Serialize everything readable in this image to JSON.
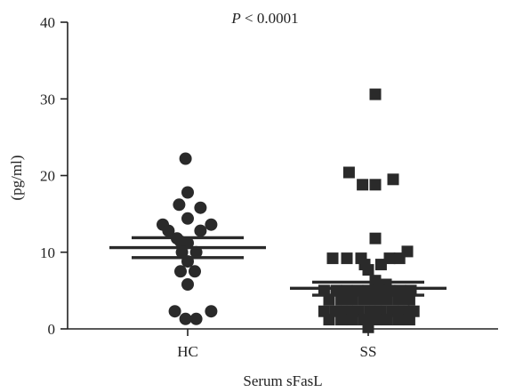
{
  "chart_data": {
    "type": "scatter",
    "xlabel": "Serum sFasL",
    "ylabel": "(pg/ml)",
    "ylim": [
      0,
      40
    ],
    "yticks": [
      0,
      10,
      20,
      30,
      40
    ],
    "annotation_prefix": "P",
    "annotation_text": " < 0.0001",
    "categories": [
      "HC",
      "SS"
    ],
    "grid": false,
    "series": [
      {
        "name": "HC",
        "marker": "circle",
        "points": [
          {
            "x": -0.35,
            "y": 13.6
          },
          {
            "x": -0.27,
            "y": 12.8
          },
          {
            "x": -0.12,
            "y": 16.2
          },
          {
            "x": -0.15,
            "y": 11.8
          },
          {
            "x": -0.03,
            "y": 22.2
          },
          {
            "x": 0.0,
            "y": 17.8
          },
          {
            "x": 0.0,
            "y": 14.4
          },
          {
            "x": 0.0,
            "y": 11.2
          },
          {
            "x": 0.18,
            "y": 15.8
          },
          {
            "x": 0.18,
            "y": 12.8
          },
          {
            "x": 0.33,
            "y": 13.6
          },
          {
            "x": -0.1,
            "y": 11.4
          },
          {
            "x": -0.08,
            "y": 10.0
          },
          {
            "x": 0.12,
            "y": 10.0
          },
          {
            "x": 0.0,
            "y": 8.8
          },
          {
            "x": -0.1,
            "y": 7.5
          },
          {
            "x": 0.1,
            "y": 7.5
          },
          {
            "x": 0.0,
            "y": 5.8
          },
          {
            "x": -0.18,
            "y": 2.3
          },
          {
            "x": 0.33,
            "y": 2.3
          },
          {
            "x": -0.03,
            "y": 1.3
          },
          {
            "x": 0.12,
            "y": 1.3
          }
        ],
        "mean": 10.6,
        "sem": [
          9.3,
          11.9
        ]
      },
      {
        "name": "SS",
        "marker": "square",
        "points": [
          {
            "x": 0.1,
            "y": 30.6
          },
          {
            "x": -0.27,
            "y": 20.4
          },
          {
            "x": 0.35,
            "y": 19.5
          },
          {
            "x": -0.08,
            "y": 18.8
          },
          {
            "x": 0.1,
            "y": 18.8
          },
          {
            "x": 0.1,
            "y": 11.8
          },
          {
            "x": 0.55,
            "y": 10.1
          },
          {
            "x": -0.5,
            "y": 9.2
          },
          {
            "x": -0.3,
            "y": 9.2
          },
          {
            "x": -0.1,
            "y": 9.2
          },
          {
            "x": 0.3,
            "y": 9.2
          },
          {
            "x": 0.44,
            "y": 9.2
          },
          {
            "x": -0.05,
            "y": 8.4
          },
          {
            "x": 0.18,
            "y": 8.4
          },
          {
            "x": 0.0,
            "y": 7.7
          },
          {
            "x": 0.1,
            "y": 6.3
          },
          {
            "x": 0.25,
            "y": 5.8
          },
          {
            "x": -0.62,
            "y": 5.0
          },
          {
            "x": -0.45,
            "y": 5.0
          },
          {
            "x": -0.3,
            "y": 5.0
          },
          {
            "x": -0.15,
            "y": 5.0
          },
          {
            "x": 0.0,
            "y": 5.0
          },
          {
            "x": 0.15,
            "y": 5.0
          },
          {
            "x": 0.3,
            "y": 5.0
          },
          {
            "x": 0.45,
            "y": 5.0
          },
          {
            "x": 0.6,
            "y": 5.0
          },
          {
            "x": -0.55,
            "y": 3.8
          },
          {
            "x": -0.38,
            "y": 3.8
          },
          {
            "x": -0.22,
            "y": 3.8
          },
          {
            "x": -0.06,
            "y": 3.8
          },
          {
            "x": 0.1,
            "y": 3.8
          },
          {
            "x": 0.26,
            "y": 3.8
          },
          {
            "x": 0.42,
            "y": 3.8
          },
          {
            "x": 0.58,
            "y": 3.8
          },
          {
            "x": -0.62,
            "y": 2.3
          },
          {
            "x": -0.46,
            "y": 2.3
          },
          {
            "x": -0.3,
            "y": 2.3
          },
          {
            "x": -0.14,
            "y": 2.3
          },
          {
            "x": 0.02,
            "y": 2.3
          },
          {
            "x": 0.18,
            "y": 2.3
          },
          {
            "x": 0.34,
            "y": 2.3
          },
          {
            "x": 0.5,
            "y": 2.3
          },
          {
            "x": 0.64,
            "y": 2.3
          },
          {
            "x": -0.55,
            "y": 1.2
          },
          {
            "x": -0.38,
            "y": 1.2
          },
          {
            "x": -0.22,
            "y": 1.2
          },
          {
            "x": -0.06,
            "y": 1.2
          },
          {
            "x": 0.1,
            "y": 1.2
          },
          {
            "x": 0.26,
            "y": 1.2
          },
          {
            "x": 0.42,
            "y": 1.2
          },
          {
            "x": 0.58,
            "y": 1.2
          },
          {
            "x": 0.0,
            "y": 0.2
          }
        ],
        "mean": 5.3,
        "sem": [
          4.4,
          6.1
        ]
      }
    ]
  }
}
